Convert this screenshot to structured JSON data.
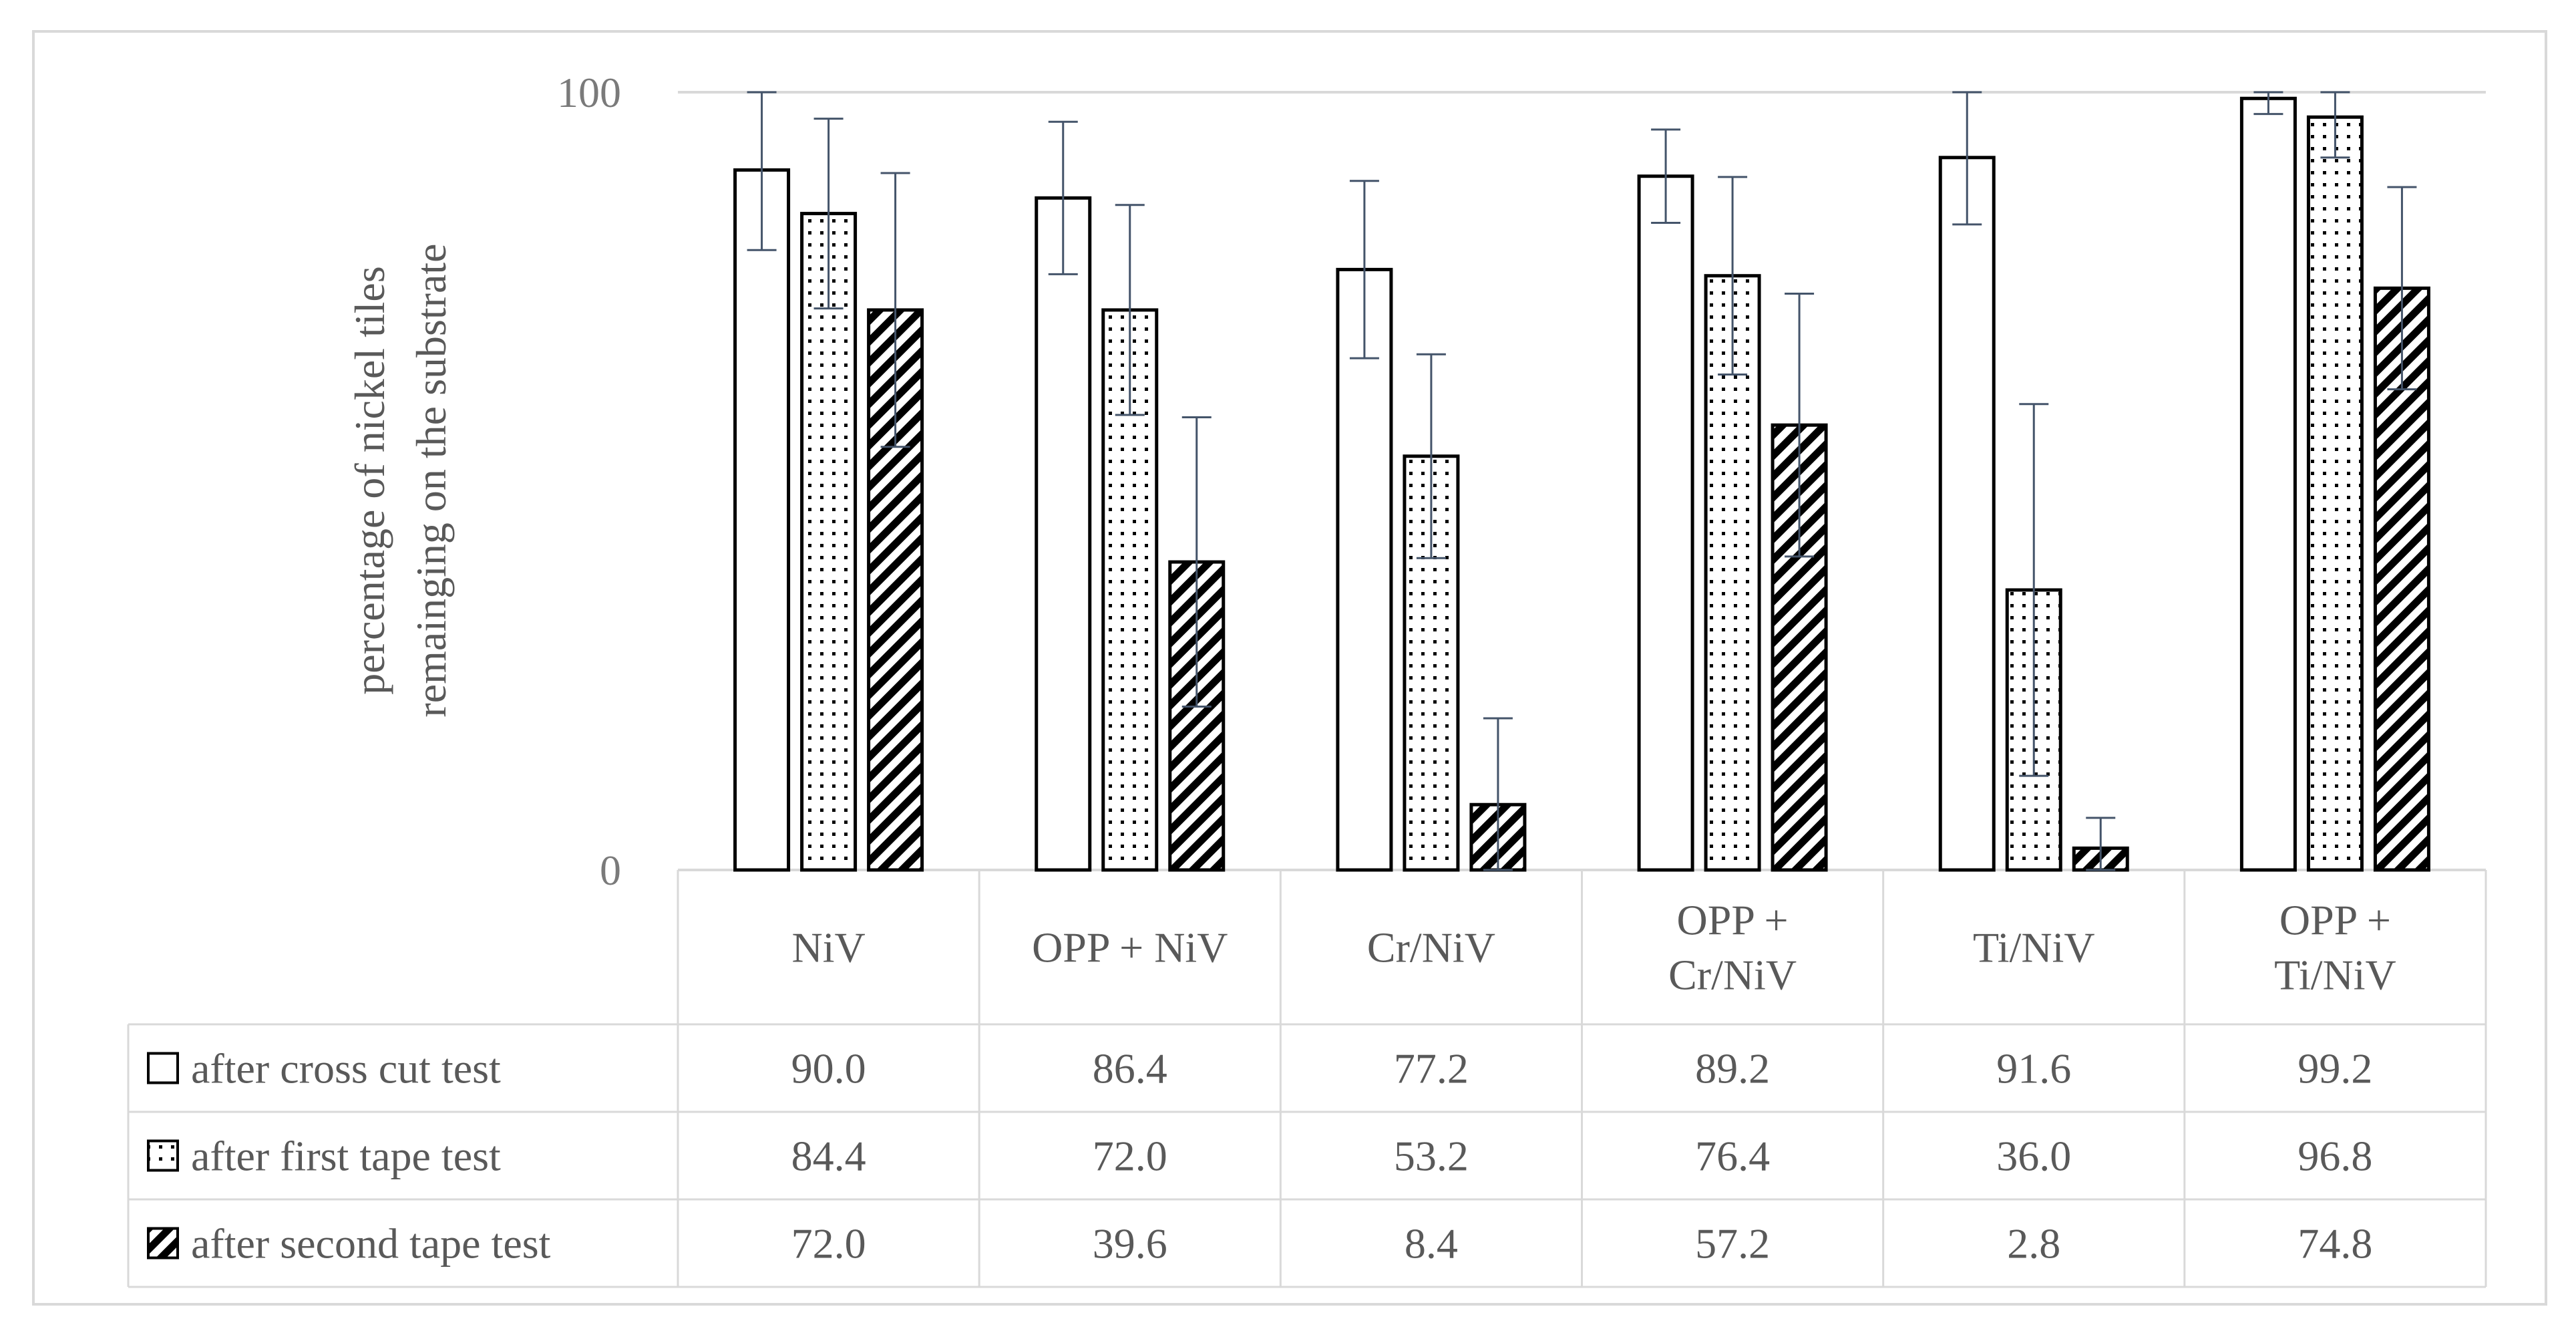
{
  "chart_data": {
    "type": "bar",
    "title": "",
    "xlabel": "",
    "ylabel_lines": [
      "percentage of nickel tiles",
      "remainging on the substrate"
    ],
    "ylim": [
      0,
      100
    ],
    "y_ticks": [
      {
        "value": 0,
        "label": "0"
      },
      {
        "value": 100,
        "label": "100"
      }
    ],
    "grid": true,
    "categories": [
      {
        "lines": [
          "NiV"
        ]
      },
      {
        "lines": [
          "OPP + NiV"
        ]
      },
      {
        "lines": [
          "Cr/NiV"
        ]
      },
      {
        "lines": [
          "OPP +",
          "Cr/NiV"
        ]
      },
      {
        "lines": [
          "Ti/NiV"
        ]
      },
      {
        "lines": [
          "OPP +",
          "Ti/NiV"
        ]
      }
    ],
    "series": [
      {
        "name": "after cross cut test",
        "pattern": "blank",
        "values": [
          90.0,
          86.4,
          77.2,
          89.2,
          91.6,
          99.2
        ],
        "labels": [
          "90.0",
          "86.4",
          "77.2",
          "89.2",
          "91.6",
          "99.2"
        ],
        "errors": [
          10.3,
          9.8,
          11.4,
          6.0,
          8.6,
          2.0
        ]
      },
      {
        "name": "after first tape test",
        "pattern": "dots",
        "values": [
          84.4,
          72.0,
          53.2,
          76.4,
          36.0,
          96.8
        ],
        "labels": [
          "84.4",
          "72.0",
          "53.2",
          "76.4",
          "36.0",
          "96.8"
        ],
        "errors": [
          12.2,
          13.5,
          13.1,
          12.7,
          23.9,
          5.2
        ]
      },
      {
        "name": "after second tape test",
        "pattern": "stripes",
        "values": [
          72.0,
          39.6,
          8.4,
          57.2,
          2.8,
          74.8
        ],
        "labels": [
          "72.0",
          "39.6",
          "8.4",
          "57.2",
          "2.8",
          "74.8"
        ],
        "errors": [
          17.6,
          18.6,
          11.1,
          16.9,
          3.9,
          13.0
        ]
      }
    ],
    "legend_position": "table"
  },
  "colors": {
    "axis": "#d9d9d9",
    "border": "#d9d9d9",
    "bar_stroke": "#000000",
    "error_bar": "#44546a",
    "tick_text": "#7a7a7a",
    "label_text": "#595959"
  }
}
